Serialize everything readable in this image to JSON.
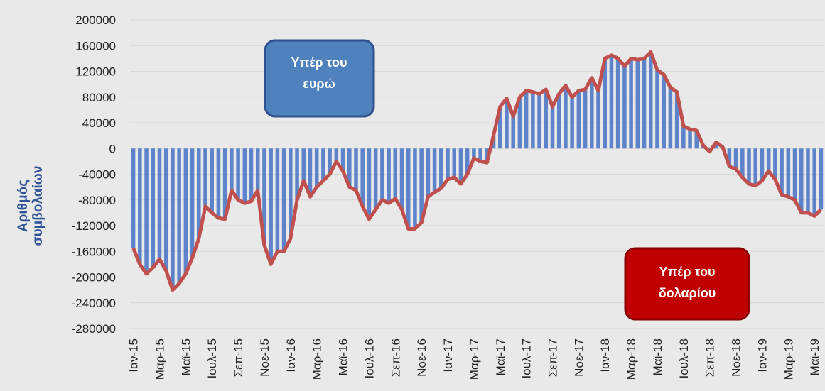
{
  "chart_data": {
    "type": "bar-line",
    "ylabel": [
      "Αριθμός",
      "συμβολαίων"
    ],
    "annotations": [
      {
        "lines": [
          "Υπέρ του",
          "ευρώ"
        ],
        "color": "#4f81bd"
      },
      {
        "lines": [
          "Υπέρ του",
          "δολαρίου"
        ],
        "color": "#c00000"
      }
    ],
    "categories": [
      "Ιαν-15",
      null,
      null,
      null,
      "Μαρ-15",
      null,
      null,
      null,
      "Μαϊ-15",
      null,
      null,
      null,
      "Ιουλ-15",
      null,
      null,
      null,
      "Σεπ-15",
      null,
      null,
      null,
      "Νοε-15",
      null,
      null,
      null,
      "Ιαν-16",
      null,
      null,
      null,
      "Μαρ-16",
      null,
      null,
      null,
      "Μαϊ-16",
      null,
      null,
      null,
      "Ιουλ-16",
      null,
      null,
      null,
      "Σεπ-16",
      null,
      null,
      null,
      "Νοε-16",
      null,
      null,
      null,
      "Ιαν-17",
      null,
      null,
      null,
      "Μαρ-17",
      null,
      null,
      null,
      "Μαϊ-17",
      null,
      null,
      null,
      "Ιουλ-17",
      null,
      null,
      null,
      "Σεπ-17",
      null,
      null,
      null,
      "Νοε-17",
      null,
      null,
      null,
      "Ιαν-18",
      null,
      null,
      null,
      "Μαρ-18",
      null,
      null,
      null,
      "Μαϊ-18",
      null,
      null,
      null,
      "Ιουλ-18",
      null,
      null,
      null,
      "Σεπ-18",
      null,
      null,
      null,
      "Νοε-18",
      null,
      null,
      null,
      "Ιαν-19",
      null,
      null,
      null,
      "Μαρ-19",
      null,
      null,
      null,
      "Μαϊ-19",
      null
    ],
    "values": [
      -155000,
      -180000,
      -195000,
      -185000,
      -172000,
      -190000,
      -220000,
      -210000,
      -195000,
      -170000,
      -140000,
      -90000,
      -100000,
      -108000,
      -110000,
      -65000,
      -80000,
      -85000,
      -82000,
      -65000,
      -150000,
      -180000,
      -160000,
      -160000,
      -140000,
      -80000,
      -50000,
      -75000,
      -60000,
      -50000,
      -40000,
      -20000,
      -35000,
      -60000,
      -65000,
      -90000,
      -110000,
      -95000,
      -80000,
      -85000,
      -78000,
      -95000,
      -125000,
      -125000,
      -115000,
      -75000,
      -68000,
      -62000,
      -48000,
      -45000,
      -55000,
      -40000,
      -15000,
      -20000,
      -22000,
      20000,
      65000,
      78000,
      50000,
      80000,
      90000,
      88000,
      85000,
      92000,
      65000,
      85000,
      98000,
      80000,
      90000,
      92000,
      110000,
      90000,
      140000,
      145000,
      140000,
      128000,
      140000,
      138000,
      140000,
      150000,
      122000,
      115000,
      95000,
      88000,
      35000,
      30000,
      28000,
      5000,
      -5000,
      10000,
      2000,
      -28000,
      -32000,
      -45000,
      -55000,
      -58000,
      -50000,
      -35000,
      -48000,
      -72000,
      -75000,
      -80000,
      -100000,
      -100000,
      -105000,
      -95000
    ],
    "bar_color": "#4472c4",
    "line_color": "#c0504d",
    "ylim": [
      -280000,
      200000
    ],
    "yticks": [
      -280000,
      -240000,
      -200000,
      -160000,
      -120000,
      -80000,
      -40000,
      0,
      40000,
      80000,
      120000,
      160000,
      200000
    ],
    "grid": true
  }
}
